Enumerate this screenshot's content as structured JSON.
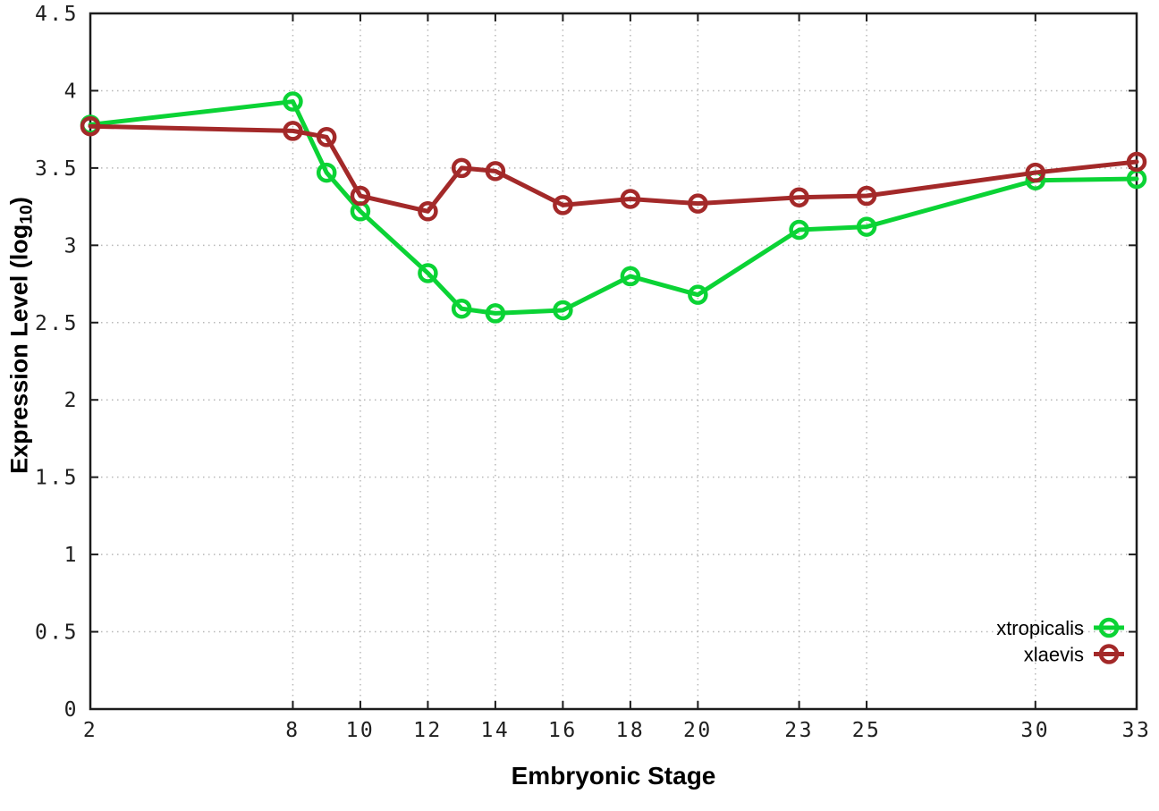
{
  "figure": {
    "background": "#ffffff",
    "border_color": "#1c1c1c",
    "grid_color": "#b8b8b8",
    "tick_label_color": "#1f1f1f",
    "xlabel": "Embryonic Stage",
    "ylabel_prefix": "Expression Level (log",
    "ylabel_sub": "10",
    "ylabel_suffix": ")"
  },
  "chart_data": {
    "type": "line",
    "title": "",
    "xlabel": "Embryonic Stage",
    "ylabel": "Expression Level (log10)",
    "xlim": [
      2,
      33
    ],
    "ylim": [
      0,
      4.5
    ],
    "xticks": [
      2,
      8,
      10,
      12,
      14,
      16,
      18,
      20,
      23,
      25,
      30,
      33
    ],
    "yticks": [
      0,
      0.5,
      1,
      1.5,
      2,
      2.5,
      3,
      3.5,
      4,
      4.5
    ],
    "grid": true,
    "grid_style": "dotted",
    "legend_position": "bottom-right",
    "marker": "open-circle",
    "x": [
      2,
      8,
      9,
      10,
      12,
      13,
      14,
      16,
      18,
      20,
      23,
      25,
      30,
      33
    ],
    "series": [
      {
        "name": "xtropicalis",
        "color": "#0bd335",
        "values": [
          3.78,
          3.93,
          3.47,
          3.22,
          2.82,
          2.59,
          2.56,
          2.58,
          2.8,
          2.68,
          3.1,
          3.12,
          3.42,
          3.43
        ]
      },
      {
        "name": "xlaevis",
        "color": "#a32929",
        "values": [
          3.77,
          3.74,
          3.7,
          3.32,
          3.22,
          3.5,
          3.48,
          3.26,
          3.3,
          3.27,
          3.31,
          3.32,
          3.47,
          3.54
        ]
      }
    ]
  }
}
